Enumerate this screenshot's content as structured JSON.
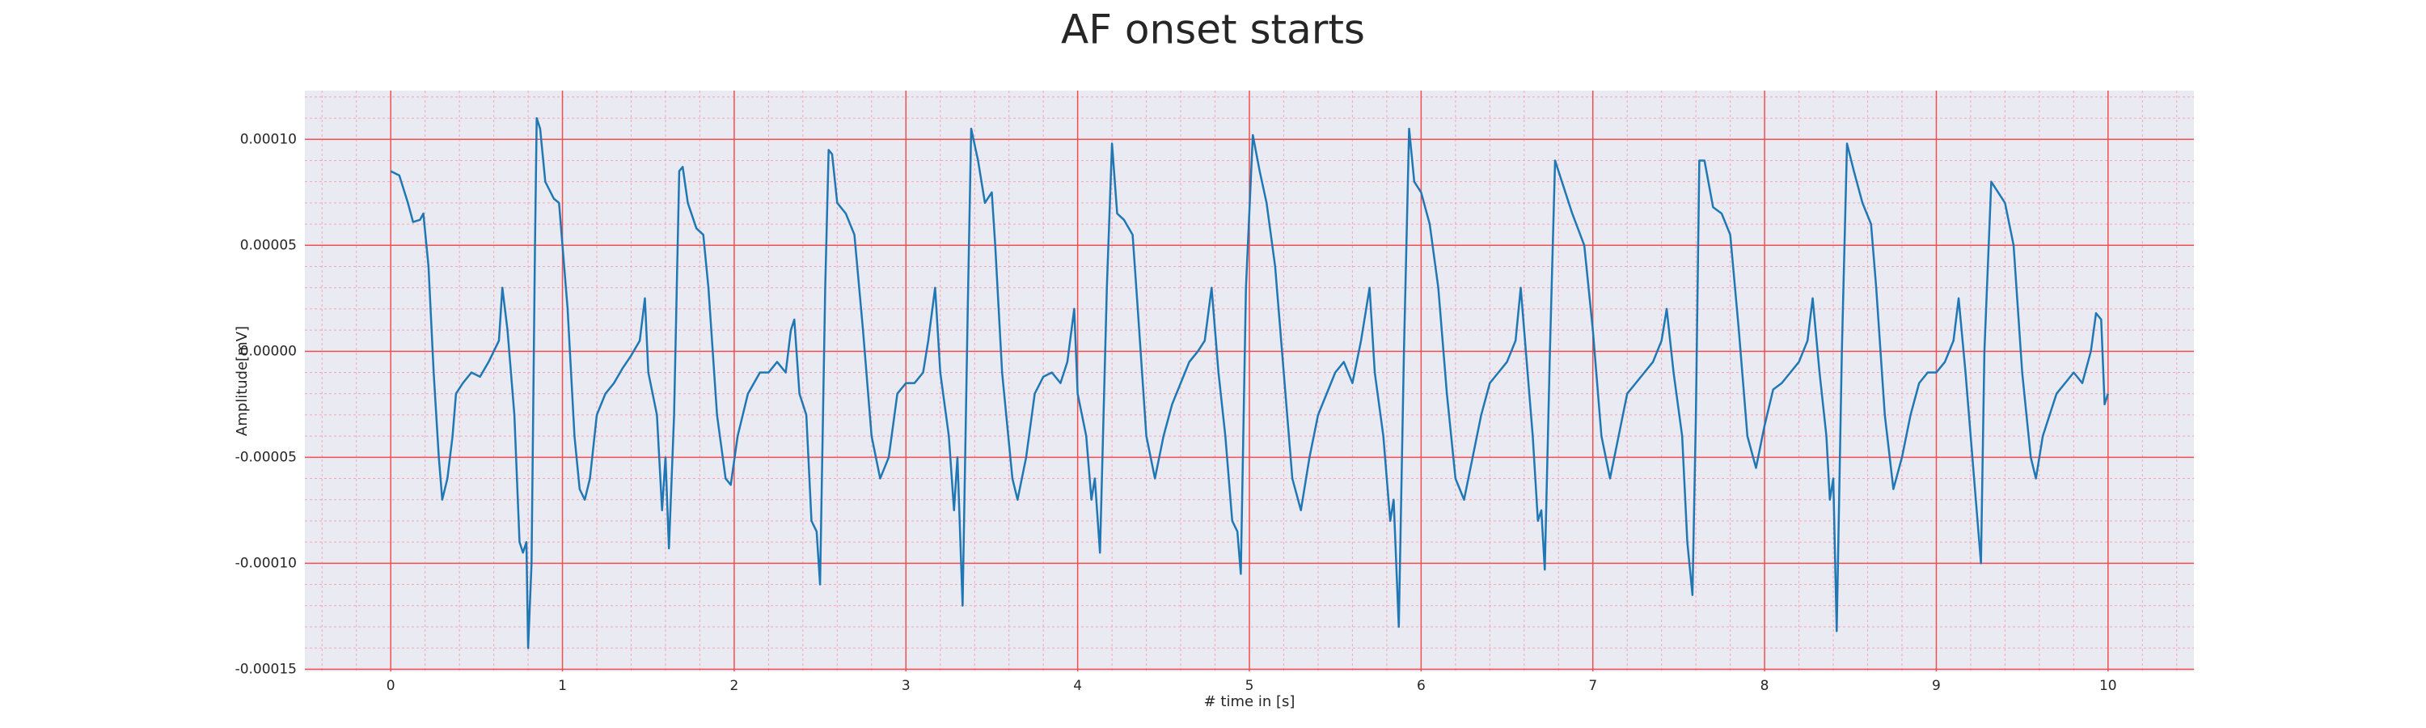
{
  "chart_data": {
    "type": "line",
    "title": "AF onset starts",
    "xlabel": "# time in [s]",
    "ylabel": "Amplitude[mV]",
    "xlim": [
      -0.5,
      10.5
    ],
    "ylim": [
      -0.000151,
      0.000123
    ],
    "xticks": [
      0,
      1,
      2,
      3,
      4,
      5,
      6,
      7,
      8,
      9,
      10
    ],
    "yticks": [
      {
        "value": 0.0001,
        "label": "0.00010"
      },
      {
        "value": 5e-05,
        "label": "0.00005"
      },
      {
        "value": 0,
        "label": "0.00000"
      },
      {
        "value": -5e-05,
        "label": "-0.00005"
      },
      {
        "value": -0.0001,
        "label": "-0.00010"
      },
      {
        "value": -0.00015,
        "label": "-0.00015"
      }
    ],
    "grid": true,
    "minor_grid": true,
    "series": [
      {
        "color": "#1f77b4",
        "x": [
          0,
          0.05,
          0.1,
          0.13,
          0.17,
          0.19,
          0.22,
          0.25,
          0.28,
          0.3,
          0.33,
          0.36,
          0.38,
          0.42,
          0.47,
          0.52,
          0.57,
          0.6,
          0.63,
          0.65,
          0.68,
          0.72,
          0.75,
          0.77,
          0.79,
          0.8,
          0.82,
          0.84,
          0.85,
          0.87,
          0.9,
          0.95,
          0.98,
          1.0,
          1.03,
          1.07,
          1.1,
          1.13,
          1.16,
          1.2,
          1.25,
          1.3,
          1.35,
          1.4,
          1.45,
          1.48,
          1.5,
          1.55,
          1.58,
          1.6,
          1.62,
          1.65,
          1.68,
          1.7,
          1.73,
          1.78,
          1.82,
          1.85,
          1.9,
          1.95,
          1.98,
          2.02,
          2.08,
          2.15,
          2.2,
          2.25,
          2.3,
          2.33,
          2.35,
          2.38,
          2.42,
          2.45,
          2.48,
          2.5,
          2.53,
          2.55,
          2.57,
          2.6,
          2.65,
          2.7,
          2.75,
          2.8,
          2.85,
          2.9,
          2.95,
          3.0,
          3.05,
          3.1,
          3.13,
          3.17,
          3.2,
          3.25,
          3.28,
          3.3,
          3.33,
          3.36,
          3.38,
          3.42,
          3.46,
          3.5,
          3.52,
          3.56,
          3.62,
          3.65,
          3.7,
          3.75,
          3.8,
          3.85,
          3.9,
          3.94,
          3.98,
          4.0,
          4.05,
          4.08,
          4.1,
          4.13,
          4.17,
          4.2,
          4.23,
          4.27,
          4.32,
          4.35,
          4.4,
          4.45,
          4.5,
          4.55,
          4.6,
          4.65,
          4.7,
          4.74,
          4.78,
          4.82,
          4.86,
          4.9,
          4.93,
          4.95,
          4.98,
          5.02,
          5.06,
          5.1,
          5.15,
          5.2,
          5.25,
          5.3,
          5.35,
          5.4,
          5.45,
          5.5,
          5.55,
          5.6,
          5.65,
          5.7,
          5.73,
          5.78,
          5.82,
          5.84,
          5.87,
          5.9,
          5.93,
          5.96,
          6.0,
          6.05,
          6.1,
          6.15,
          6.2,
          6.25,
          6.3,
          6.35,
          6.4,
          6.45,
          6.5,
          6.55,
          6.58,
          6.62,
          6.65,
          6.68,
          6.7,
          6.72,
          6.75,
          6.78,
          6.82,
          6.88,
          6.95,
          7.0,
          7.05,
          7.1,
          7.15,
          7.2,
          7.25,
          7.3,
          7.35,
          7.4,
          7.43,
          7.47,
          7.52,
          7.55,
          7.58,
          7.6,
          7.62,
          7.65,
          7.7,
          7.75,
          7.8,
          7.85,
          7.9,
          7.95,
          8.0,
          8.05,
          8.1,
          8.15,
          8.2,
          8.25,
          8.28,
          8.32,
          8.36,
          8.38,
          8.4,
          8.42,
          8.45,
          8.48,
          8.52,
          8.57,
          8.62,
          8.65,
          8.7,
          8.75,
          8.8,
          8.85,
          8.9,
          8.95,
          9.0,
          9.05,
          9.1,
          9.13,
          9.17,
          9.2,
          9.22,
          9.24,
          9.26,
          9.28,
          9.32,
          9.36,
          9.4,
          9.45,
          9.5,
          9.55,
          9.58,
          9.62,
          9.66,
          9.7,
          9.75,
          9.8,
          9.85,
          9.9,
          9.93,
          9.96,
          9.98,
          10.0
        ],
        "values": [
          8.5e-05,
          8.3e-05,
          7e-05,
          6.1e-05,
          6.2e-05,
          6.5e-05,
          4e-05,
          -1e-05,
          -5e-05,
          -7e-05,
          -6e-05,
          -4e-05,
          -2e-05,
          -1.5e-05,
          -1e-05,
          -1.2e-05,
          -5e-06,
          0,
          5e-06,
          3e-05,
          1e-05,
          -3e-05,
          -9e-05,
          -9.5e-05,
          -9e-05,
          -0.00014,
          -0.0001,
          5e-05,
          0.00011,
          0.000105,
          8e-05,
          7.2e-05,
          7e-05,
          5e-05,
          2e-05,
          -4e-05,
          -6.5e-05,
          -7e-05,
          -6e-05,
          -3e-05,
          -2e-05,
          -1.5e-05,
          -8e-06,
          -2e-06,
          5e-06,
          2.5e-05,
          -1e-05,
          -3e-05,
          -7.5e-05,
          -5e-05,
          -9.3e-05,
          -3e-05,
          8.5e-05,
          8.7e-05,
          7e-05,
          5.8e-05,
          5.5e-05,
          3e-05,
          -3e-05,
          -6e-05,
          -6.3e-05,
          -4e-05,
          -2e-05,
          -1e-05,
          -1e-05,
          -5e-06,
          -1e-05,
          1e-05,
          1.5e-05,
          -2e-05,
          -3e-05,
          -8e-05,
          -8.5e-05,
          -0.00011,
          3e-05,
          9.5e-05,
          9.3e-05,
          7e-05,
          6.5e-05,
          5.5e-05,
          1e-05,
          -4e-05,
          -6e-05,
          -5e-05,
          -2e-05,
          -1.5e-05,
          -1.5e-05,
          -1e-05,
          5e-06,
          3e-05,
          -1e-05,
          -4e-05,
          -7.5e-05,
          -5e-05,
          -0.00012,
          2e-05,
          0.000105,
          9e-05,
          7e-05,
          7.5e-05,
          5e-05,
          -1e-05,
          -6e-05,
          -7e-05,
          -5e-05,
          -2e-05,
          -1.2e-05,
          -1e-05,
          -1.5e-05,
          -5e-06,
          2e-05,
          -2e-05,
          -4e-05,
          -7e-05,
          -6e-05,
          -9.5e-05,
          3e-05,
          9.8e-05,
          6.5e-05,
          6.2e-05,
          5.5e-05,
          2e-05,
          -4e-05,
          -6e-05,
          -4e-05,
          -2.5e-05,
          -1.5e-05,
          -5e-06,
          0,
          5e-06,
          3e-05,
          -1e-05,
          -4e-05,
          -8e-05,
          -8.5e-05,
          -0.000105,
          3e-05,
          0.000102,
          8.5e-05,
          7e-05,
          4e-05,
          -1e-05,
          -6e-05,
          -7.5e-05,
          -5e-05,
          -3e-05,
          -2e-05,
          -1e-05,
          -5e-06,
          -1.5e-05,
          5e-06,
          3e-05,
          -1e-05,
          -4e-05,
          -8e-05,
          -7e-05,
          -0.00013,
          0,
          0.000105,
          8e-05,
          7.5e-05,
          6e-05,
          3e-05,
          -2e-05,
          -6e-05,
          -7e-05,
          -5e-05,
          -3e-05,
          -1.5e-05,
          -1e-05,
          -5e-06,
          5e-06,
          3e-05,
          -1e-05,
          -4e-05,
          -8e-05,
          -7.5e-05,
          -0.000103,
          0,
          9e-05,
          8e-05,
          6.5e-05,
          5e-05,
          1e-05,
          -4e-05,
          -6e-05,
          -4e-05,
          -2e-05,
          -1.5e-05,
          -1e-05,
          -5e-06,
          5e-06,
          2e-05,
          -1e-05,
          -4e-05,
          -9e-05,
          -0.000115,
          -3e-05,
          9e-05,
          9e-05,
          6.8e-05,
          6.5e-05,
          5.5e-05,
          1e-05,
          -4e-05,
          -5.5e-05,
          -3.5e-05,
          -1.8e-05,
          -1.5e-05,
          -1e-05,
          -5e-06,
          5e-06,
          2.5e-05,
          -1e-05,
          -4e-05,
          -7e-05,
          -6e-05,
          -0.000132,
          0,
          9.8e-05,
          8.5e-05,
          7e-05,
          6e-05,
          3e-05,
          -3e-05,
          -6.5e-05,
          -5e-05,
          -3e-05,
          -1.5e-05,
          -1e-05,
          -1e-05,
          -5e-06,
          5e-06,
          2.5e-05,
          -1e-05,
          -4e-05,
          -6e-05,
          -8e-05,
          -0.0001,
          0,
          8e-05,
          7.5e-05,
          7e-05,
          5e-05,
          -1e-05,
          -5e-05,
          -6e-05,
          -4e-05,
          -3e-05,
          -2e-05,
          -1.5e-05,
          -1e-05,
          -1.5e-05,
          0,
          1.8e-05,
          1.5e-05,
          -2.5e-05,
          -2e-05
        ]
      }
    ]
  }
}
